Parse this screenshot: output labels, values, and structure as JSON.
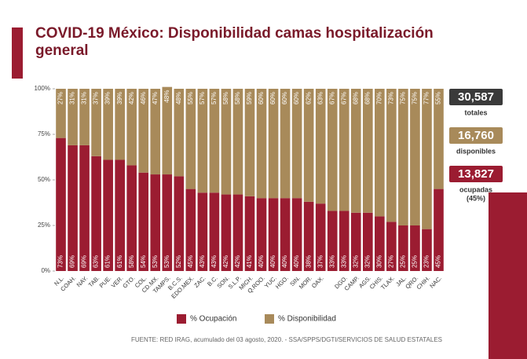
{
  "chart_data": {
    "type": "stacked-bar",
    "title": "COVID-19 México: Disponibilidad camas hospitalización general",
    "categories": [
      "N.L.",
      "COAH.",
      "NAY.",
      "TAB.",
      "PUE.",
      "VER.",
      "GTO.",
      "COL.",
      "CD.MX.",
      "TAMPS.",
      "B.C.S.",
      "EDO.MEX.",
      "ZAC.",
      "B.C.",
      "SON.",
      "S.L.P.",
      "MICH.",
      "Q.ROO.",
      "YUC.",
      "HGO.",
      "SIN.",
      "MOR.",
      "OAX.",
      null,
      "DGO.",
      "CAMP.",
      "AGS.",
      "CHIS.",
      "TLAX.",
      "JAL.",
      "QRO.",
      "CHIH.",
      "NAC."
    ],
    "series": [
      {
        "name": "% Ocupación",
        "color": "#9b1c31",
        "values": [
          73,
          69,
          69,
          63,
          61,
          61,
          58,
          54,
          53,
          53,
          52,
          45,
          43,
          43,
          42,
          42,
          41,
          40,
          40,
          40,
          40,
          38,
          37,
          33,
          33,
          32,
          32,
          30,
          27,
          25,
          25,
          23,
          45
        ],
        "value_labels": [
          "73%",
          "69%",
          "69%",
          "63%",
          "61%",
          "61%",
          "58%",
          "54%",
          "53%",
          "53%",
          "52%",
          "45%",
          "43%",
          "43%",
          "42%",
          "42%",
          "41%",
          "40%",
          "40%",
          "40%",
          "40%",
          "38%",
          "37%",
          "33%",
          "33%",
          "32%",
          "32%",
          "30%",
          "27%",
          "25%",
          "25%",
          "23%",
          "45%"
        ]
      },
      {
        "name": "% Disponibilidad",
        "color": "#a88a5a",
        "values": [
          27,
          31,
          31,
          37,
          39,
          39,
          42,
          46,
          47,
          48,
          48,
          55,
          57,
          57,
          58,
          58,
          59,
          60,
          60,
          60,
          60,
          62,
          63,
          67,
          67,
          68,
          68,
          70,
          73,
          75,
          75,
          77,
          55
        ],
        "value_labels": [
          "27%",
          "31%",
          "31%",
          "37%",
          "39%",
          "39%",
          "42%",
          "46%",
          "47%",
          "48%",
          "48%",
          "55%",
          "57%",
          "57%",
          "58%",
          "58%",
          "59%",
          "60%",
          "60%",
          "60%",
          "60%",
          "62%",
          "63%",
          "67%",
          "67%",
          "68%",
          "68%",
          "70%",
          "73%",
          "75%",
          "75%",
          "77%",
          "55%"
        ]
      }
    ],
    "ylim": [
      0,
      100
    ],
    "yticks": [
      {
        "value": 0,
        "label": "0%"
      },
      {
        "value": 25,
        "label": "25%"
      },
      {
        "value": 50,
        "label": "50%"
      },
      {
        "value": 75,
        "label": "75%"
      },
      {
        "value": 100,
        "label": "100%"
      }
    ],
    "legend": "bottom"
  },
  "summary": [
    {
      "value": "30,587",
      "label": "totales",
      "color": "#3a3a3a"
    },
    {
      "value": "16,760",
      "label": "disponibles",
      "color": "#a88a5a"
    },
    {
      "value": "13,827",
      "label": "ocupadas",
      "note": "(45%)",
      "color": "#9b1c31"
    }
  ],
  "source": "FUENTE: RED IRAG, acumulado del 03 agosto, 2020. - SSA/SPPS/DGTI/SERVICIOS DE SALUD ESTATALES"
}
